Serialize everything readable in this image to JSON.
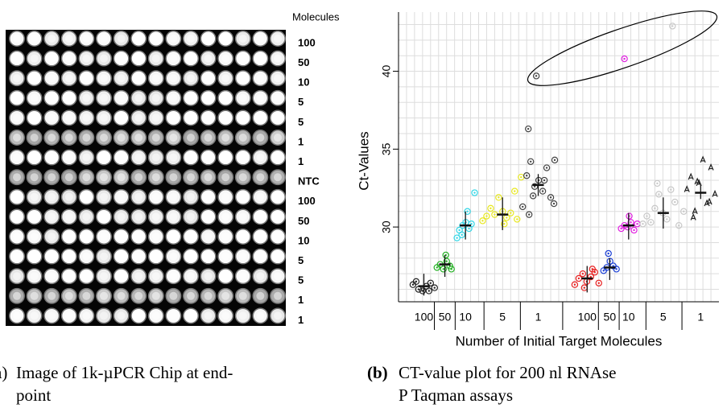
{
  "figure_a": {
    "header": "Molecules",
    "row_labels": [
      "100",
      "50",
      "10",
      "5",
      "5",
      "1",
      "1",
      "NTC",
      "100",
      "50",
      "10",
      "5",
      "5",
      "1",
      "1"
    ],
    "caption_label": "(a)",
    "caption": [
      "Image of 1k-µPCR Chip at end-",
      "point"
    ]
  },
  "chart_data": {
    "type": "scatter",
    "xlabel": "Number of Initial Target Molecules",
    "ylabel": "Ct-Values",
    "xlim": [
      0,
      40
    ],
    "ylim": [
      25.2,
      43.8
    ],
    "yticks": [
      30,
      35,
      40
    ],
    "grid": true,
    "xgrid": [
      1,
      2,
      3,
      4,
      5,
      6,
      7,
      8,
      9,
      10,
      11,
      12,
      13,
      14,
      15,
      16,
      17,
      18,
      19,
      20,
      21,
      22,
      23,
      24,
      25,
      26,
      27,
      28,
      29,
      30,
      31,
      32,
      33,
      34,
      35,
      36,
      37,
      38,
      39
    ],
    "ygrid": [
      26,
      27,
      28,
      29,
      30,
      31,
      32,
      33,
      34,
      35,
      36,
      37,
      38,
      39,
      40,
      41,
      42,
      43
    ],
    "groups": [
      {
        "label": "100",
        "color": "#222222",
        "marker": "circle",
        "x": [
          1.8,
          2.5,
          3.0,
          3.5,
          4.0,
          4.5,
          2.2,
          3.8
        ],
        "y": [
          26.3,
          26.0,
          25.9,
          26.2,
          26.4,
          26.1,
          26.5,
          25.9
        ],
        "mean": 26.2,
        "range": [
          25.6,
          27.0
        ]
      },
      {
        "label": "50",
        "color": "#22b022",
        "marker": "circle",
        "x": [
          4.8,
          5.2,
          5.6,
          6.0,
          6.4,
          5.9,
          6.6
        ],
        "y": [
          27.4,
          27.6,
          27.3,
          27.8,
          27.5,
          28.2,
          27.3
        ],
        "mean": 27.6,
        "range": [
          26.8,
          28.2
        ]
      },
      {
        "label": "10",
        "color": "#33d6e6",
        "marker": "circle",
        "x": [
          7.3,
          7.6,
          8.0,
          8.4,
          8.8,
          9.1,
          8.6,
          9.5,
          7.9
        ],
        "y": [
          29.3,
          29.8,
          30.1,
          30.3,
          29.9,
          30.2,
          31.0,
          32.2,
          29.5
        ],
        "mean": 30.1,
        "range": [
          29.2,
          31.0
        ]
      },
      {
        "label": "5",
        "color": "#e8e820",
        "marker": "circle",
        "x": [
          10.5,
          11.0,
          11.5,
          12.0,
          12.5,
          13.0,
          13.5,
          14.0,
          14.5,
          14.8,
          15.3,
          13.2
        ],
        "y": [
          30.4,
          30.7,
          31.2,
          30.8,
          31.9,
          31.0,
          30.6,
          30.9,
          32.3,
          30.5,
          33.2,
          30.2
        ],
        "mean": 30.8,
        "range": [
          29.8,
          31.9
        ]
      },
      {
        "label": "1",
        "color": "#444444",
        "marker": "circle",
        "x": [
          15.5,
          16.0,
          16.5,
          17.0,
          17.5,
          18.0,
          18.5,
          19.0,
          19.5,
          16.2,
          16.8,
          18.2,
          19.4,
          16.3,
          17.2
        ],
        "y": [
          31.3,
          33.3,
          34.2,
          32.6,
          33.0,
          32.3,
          33.8,
          31.9,
          34.3,
          36.3,
          32.0,
          33.0,
          31.5,
          30.8,
          39.7
        ],
        "mean": 32.7,
        "range": [
          32.0,
          33.4
        ]
      },
      {
        "label": "100",
        "color": "#e82020",
        "marker": "circle",
        "x": [
          22.0,
          22.5,
          23.0,
          23.5,
          24.0,
          24.5,
          25.0,
          23.2,
          24.2
        ],
        "y": [
          26.3,
          26.7,
          27.0,
          26.5,
          26.8,
          27.1,
          26.4,
          26.1,
          27.3
        ],
        "mean": 26.7,
        "range": [
          25.8,
          27.5
        ]
      },
      {
        "label": "50",
        "color": "#1a3fd6",
        "marker": "circle",
        "x": [
          25.6,
          26.0,
          26.4,
          26.8,
          27.2,
          26.2
        ],
        "y": [
          27.2,
          27.4,
          27.8,
          27.5,
          27.3,
          28.3
        ],
        "mean": 27.4,
        "range": [
          26.6,
          28.0
        ]
      },
      {
        "label": "10",
        "color": "#e020e0",
        "marker": "circle",
        "x": [
          27.8,
          28.2,
          28.6,
          29.0,
          29.4,
          29.8,
          28.8,
          28.2
        ],
        "y": [
          29.9,
          30.1,
          30.0,
          30.3,
          29.8,
          30.2,
          30.7,
          40.8
        ],
        "mean": 30.1,
        "range": [
          29.2,
          30.9
        ]
      },
      {
        "label": "5",
        "color": "#c8c8c8",
        "marker": "circle",
        "x": [
          30.5,
          31.0,
          31.5,
          32.0,
          32.5,
          33.0,
          33.5,
          34.0,
          34.5,
          35.0,
          32.3,
          35.6,
          34.2
        ],
        "y": [
          30.2,
          30.7,
          30.3,
          31.2,
          32.1,
          30.9,
          30.5,
          32.4,
          31.6,
          30.1,
          32.8,
          31.0,
          42.9
        ],
        "mean": 30.9,
        "range": [
          29.9,
          31.9
        ]
      },
      {
        "label": "1",
        "color": "#222222",
        "marker": "caret",
        "x": [
          36.0,
          36.5,
          37.0,
          37.5,
          38.0,
          38.5,
          39.0,
          39.5,
          36.8,
          38.8,
          37.3
        ],
        "y": [
          32.4,
          33.2,
          31.0,
          32.8,
          34.3,
          31.5,
          33.8,
          32.1,
          30.6,
          31.6,
          32.9
        ],
        "mean": 32.2,
        "range": [
          31.8,
          32.7
        ]
      }
    ]
  },
  "caption_b": {
    "label": "(b)",
    "text": [
      "CT-value plot for 200 nl RNAse",
      "P Taqman assays"
    ]
  }
}
